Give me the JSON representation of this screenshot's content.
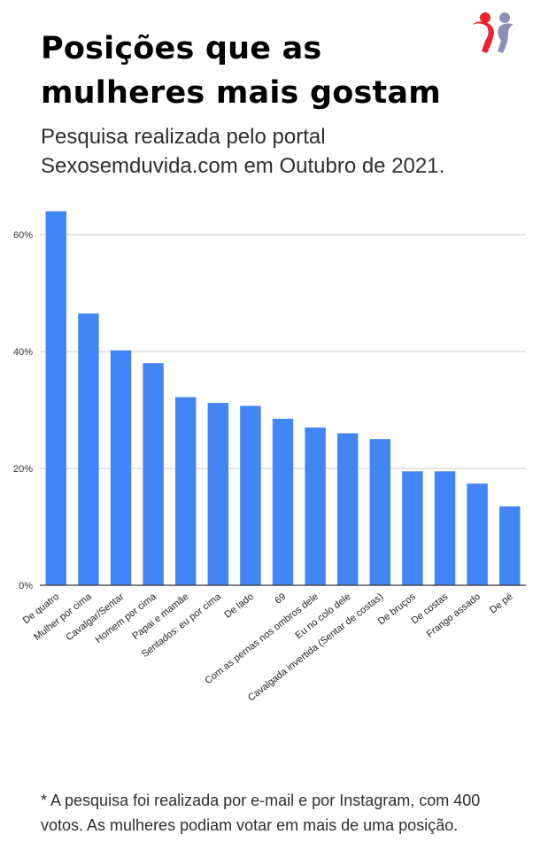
{
  "header": {
    "title": "Posições que as mulheres mais gostam",
    "subtitle": "Pesquisa realizada pelo portal Sexosemduvida.com em Outubro de 2021."
  },
  "logo": {
    "icon": "two-figures-logo-icon",
    "colors": [
      "#e8232a",
      "#8a8fb5"
    ]
  },
  "chart_data": {
    "type": "bar",
    "categories": [
      "De quatro",
      "Mulher por cima",
      "Cavalgar/Sentar",
      "Homem por cima",
      "Papai e mamãe",
      "Sentados: eu por cima",
      "De lado",
      "69",
      "Com as pernas nos ombros dele",
      "Eu no colo dele",
      "Cavalgada invertida (Sentar de costas)",
      "De bruços",
      "De costas",
      "Frango assado",
      "De pé"
    ],
    "values": [
      64,
      46.5,
      40.2,
      38,
      32.2,
      31.2,
      30.7,
      28.5,
      27,
      26,
      25,
      19.5,
      19.5,
      17.4,
      13.5
    ],
    "ylim": [
      0,
      65
    ],
    "yticks": [
      0,
      20,
      40,
      60
    ],
    "ytick_labels": [
      "0%",
      "20%",
      "40%",
      "60%"
    ],
    "xlabel": "",
    "ylabel": "",
    "grid": true,
    "bar_color": "#4285f4",
    "grid_color": "#cccccc",
    "axis_color": "#333333"
  },
  "footer": {
    "note": "* A pesquisa foi realizada por e-mail e por Instagram, com 400 votos. As mulheres podiam votar em mais de uma posição."
  }
}
